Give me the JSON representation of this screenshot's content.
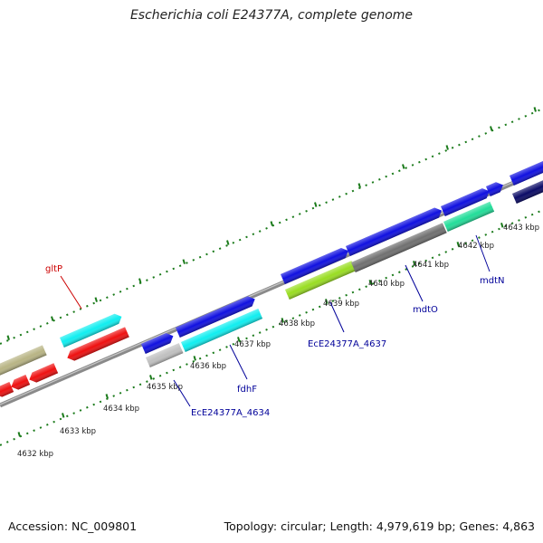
{
  "title": "Escherichia coli E24377A, complete genome",
  "footer": {
    "accession": "Accession: NC_009801",
    "summary": "Topology: circular; Length: 4,979,619 bp; Genes: 4,863"
  },
  "scale_labels": [
    "4632 kbp",
    "4633 kbp",
    "4634 kbp",
    "4635 kbp",
    "4636 kbp",
    "4637 kbp",
    "4638 kbp",
    "4639 kbp",
    "4640 kbp",
    "4641 kbp",
    "4642 kbp",
    "4643 kbp"
  ],
  "gene_labels": [
    {
      "text": "gltP",
      "color": "#cc0000"
    },
    {
      "text": "EcE24377A_4634",
      "color": "#000099"
    },
    {
      "text": "fdhF",
      "color": "#000099"
    },
    {
      "text": "EcE24377A_4637",
      "color": "#000099"
    },
    {
      "text": "mdtO",
      "color": "#000099"
    },
    {
      "text": "mdtN",
      "color": "#000099"
    }
  ],
  "colors": {
    "backbone": "#8a8a8a",
    "tick_marks": "#1a7a1a",
    "cds_blue": "#1010e0",
    "cds_cyan": "#10eef0",
    "cds_red": "#ee1010",
    "cds_olive": "#b8b484",
    "cds_gray": "#707070",
    "cds_lightgray": "#c0c0c0",
    "cds_lime": "#99dd22",
    "cds_seagreen": "#22dd99",
    "cds_navy": "#0a0a66"
  }
}
